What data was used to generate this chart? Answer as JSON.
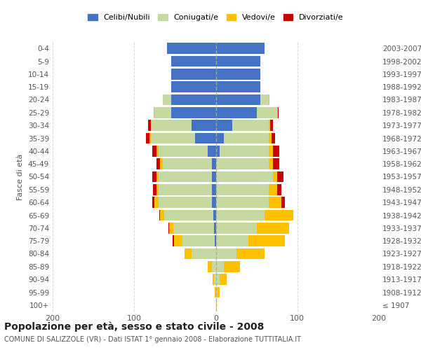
{
  "age_groups": [
    "100+",
    "95-99",
    "90-94",
    "85-89",
    "80-84",
    "75-79",
    "70-74",
    "65-69",
    "60-64",
    "55-59",
    "50-54",
    "45-49",
    "40-44",
    "35-39",
    "30-34",
    "25-29",
    "20-24",
    "15-19",
    "10-14",
    "5-9",
    "0-4"
  ],
  "birth_years": [
    "≤ 1907",
    "1908-1912",
    "1913-1917",
    "1918-1922",
    "1923-1927",
    "1928-1932",
    "1933-1937",
    "1938-1942",
    "1943-1947",
    "1948-1952",
    "1953-1957",
    "1958-1962",
    "1963-1967",
    "1968-1972",
    "1973-1977",
    "1978-1982",
    "1983-1987",
    "1988-1992",
    "1993-1997",
    "1998-2002",
    "2003-2007"
  ],
  "male": {
    "celibi": [
      0,
      0,
      0,
      0,
      0,
      1,
      2,
      3,
      5,
      5,
      5,
      5,
      10,
      25,
      30,
      55,
      55,
      55,
      55,
      55,
      60
    ],
    "coniugati": [
      0,
      0,
      2,
      5,
      30,
      40,
      50,
      60,
      65,
      65,
      65,
      60,
      60,
      55,
      50,
      20,
      10,
      0,
      0,
      0,
      0
    ],
    "vedovi": [
      0,
      1,
      2,
      5,
      8,
      10,
      5,
      5,
      5,
      3,
      3,
      3,
      3,
      1,
      0,
      1,
      0,
      0,
      0,
      0,
      0
    ],
    "divorziati": [
      0,
      0,
      0,
      0,
      0,
      2,
      1,
      1,
      3,
      4,
      5,
      5,
      5,
      5,
      3,
      0,
      0,
      0,
      0,
      0,
      0
    ]
  },
  "female": {
    "nubili": [
      0,
      0,
      0,
      0,
      0,
      0,
      0,
      0,
      0,
      0,
      0,
      0,
      5,
      10,
      20,
      50,
      55,
      55,
      55,
      55,
      60
    ],
    "coniugate": [
      0,
      2,
      5,
      10,
      25,
      40,
      50,
      60,
      65,
      65,
      70,
      65,
      60,
      55,
      45,
      25,
      10,
      0,
      0,
      0,
      0
    ],
    "vedove": [
      1,
      3,
      8,
      20,
      35,
      45,
      40,
      35,
      15,
      10,
      5,
      5,
      5,
      3,
      2,
      1,
      1,
      0,
      0,
      0,
      0
    ],
    "divorziate": [
      0,
      0,
      0,
      0,
      0,
      0,
      0,
      0,
      5,
      5,
      8,
      8,
      8,
      5,
      3,
      1,
      0,
      0,
      0,
      0,
      0
    ]
  },
  "colors": {
    "celibi": "#4472c4",
    "coniugati": "#c5d9a0",
    "vedovi": "#ffc000",
    "divorziati": "#cc0000"
  },
  "title": "Popolazione per età, sesso e stato civile - 2008",
  "subtitle": "COMUNE DI SALIZZOLE (VR) - Dati ISTAT 1° gennaio 2008 - Elaborazione TUTTITALIA.IT",
  "ylabel_left": "Fasce di età",
  "xlim": 200,
  "background_color": "#ffffff",
  "grid_color": "#cccccc",
  "legend_labels": [
    "Celibi/Nubili",
    "Coniugati/e",
    "Vedovi/e",
    "Divorziati/e"
  ]
}
